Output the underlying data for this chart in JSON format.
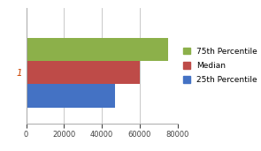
{
  "categories": [
    "1"
  ],
  "series": [
    {
      "label": "75th Percentile",
      "value": 75000,
      "color": "#8CB04A"
    },
    {
      "label": "Median",
      "value": 60000,
      "color": "#BE4B48"
    },
    {
      "label": "25th Percentile",
      "value": 47000,
      "color": "#4472C4"
    }
  ],
  "xlim": [
    0,
    80000
  ],
  "xticks": [
    0,
    20000,
    40000,
    60000,
    80000
  ],
  "ylabel_text": "1",
  "background_color": "#FFFFFF",
  "plot_bg_color": "#FFFFFF",
  "grid_color": "#C0C0C0",
  "legend_fontsize": 6.5,
  "bar_height": 0.28,
  "title": ""
}
